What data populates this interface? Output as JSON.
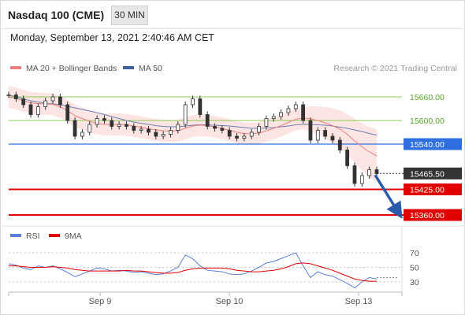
{
  "header": {
    "title": "Nasdaq 100 (CME)",
    "interval": "30 MIN",
    "timestamp": "Monday, September 13, 2021 2:40:46 AM CET"
  },
  "legend": {
    "items": [
      {
        "label": "MA 20 + Bollinger Bands",
        "color": "#f08080"
      },
      {
        "label": "MA 50",
        "color": "#3f5f9f"
      }
    ],
    "credit": "Research © 2021 Trading Central"
  },
  "levels": [
    {
      "label": "15660.00",
      "value": 15660,
      "color": "#8ccc55",
      "style": "thin"
    },
    {
      "label": "15600.00",
      "value": 15600,
      "color": "#8ccc55",
      "style": "thin"
    },
    {
      "label": "15540.00",
      "value": 15540,
      "color": "#2f6fe0",
      "style": "box"
    },
    {
      "label": "15465.50",
      "value": 15465.5,
      "color": "#333333",
      "style": "box"
    },
    {
      "label": "15425.00",
      "value": 15425,
      "color": "#e00000",
      "style": "box"
    },
    {
      "label": "15360.00",
      "value": 15360,
      "color": "#e00000",
      "style": "box"
    }
  ],
  "rsi": {
    "legend": [
      {
        "label": "RSI",
        "color": "#5b7fd6"
      },
      {
        "label": "9MA",
        "color": "#e00000"
      }
    ],
    "ticks": [
      "70",
      "50",
      "30"
    ]
  },
  "chart_data": {
    "type": "line",
    "title": "Nasdaq 100 (CME)",
    "x_tick_labels": [
      "Sep 9",
      "Sep 10",
      "Sep 13"
    ],
    "y_ticks": [
      15660,
      15600,
      15540,
      15465.5,
      15425,
      15360
    ],
    "series": [
      {
        "name": "price",
        "values": [
          15665,
          15655,
          15640,
          15615,
          15635,
          15650,
          15660,
          15640,
          15600,
          15560,
          15570,
          15590,
          15605,
          15600,
          15585,
          15590,
          15585,
          15575,
          15578,
          15570,
          15560,
          15565,
          15575,
          15590,
          15640,
          15655,
          15615,
          15585,
          15580,
          15575,
          15560,
          15555,
          15560,
          15570,
          15585,
          15605,
          15610,
          15620,
          15630,
          15640,
          15600,
          15550,
          15575,
          15560,
          15550,
          15525,
          15485,
          15440,
          15460,
          15475,
          15465
        ]
      },
      {
        "name": "MA 20",
        "values": [
          15660,
          15656,
          15650,
          15645,
          15643,
          15642,
          15641,
          15635,
          15625,
          15612,
          15605,
          15598,
          15592,
          15590,
          15590,
          15590,
          15589,
          15586,
          15583,
          15579,
          15576,
          15574,
          15573,
          15574,
          15580,
          15586,
          15588,
          15587,
          15584,
          15580,
          15575,
          15570,
          15567,
          15566,
          15568,
          15574,
          15580,
          15587,
          15595,
          15603,
          15606,
          15604,
          15600,
          15594,
          15587,
          15578,
          15565,
          15548,
          15533,
          15520,
          15510
        ]
      },
      {
        "name": "MA 50",
        "values": [
          15665,
          15660,
          15655,
          15650,
          15647,
          15644,
          15642,
          15640,
          15636,
          15632,
          15628,
          15624,
          15620,
          15615,
          15610,
          15605,
          15600,
          15596,
          15593,
          15590,
          15587,
          15585,
          15584,
          15584,
          15586,
          15588,
          15589,
          15589,
          15588,
          15587,
          15586,
          15584,
          15582,
          15580,
          15580,
          15581,
          15582,
          15584,
          15586,
          15589,
          15590,
          15590,
          15589,
          15588,
          15586,
          15583,
          15580,
          15576,
          15572,
          15567,
          15563
        ]
      },
      {
        "name": "RSI",
        "values": [
          55,
          53,
          49,
          47,
          52,
          50,
          52,
          48,
          43,
          37,
          41,
          45,
          49,
          48,
          45,
          46,
          45,
          43,
          44,
          42,
          40,
          41,
          45,
          50,
          67,
          62,
          52,
          46,
          45,
          44,
          41,
          40,
          41,
          45,
          50,
          56,
          58,
          62,
          66,
          70,
          52,
          36,
          44,
          40,
          38,
          33,
          28,
          22,
          30,
          36,
          34
        ]
      },
      {
        "name": "9MA",
        "values": [
          52,
          52,
          51,
          50,
          50,
          50,
          51,
          50,
          49,
          47,
          46,
          45,
          45,
          45,
          45,
          45,
          46,
          45,
          45,
          44,
          43,
          42,
          42,
          43,
          46,
          48,
          49,
          49,
          49,
          49,
          48,
          46,
          45,
          44,
          44,
          45,
          46,
          48,
          51,
          55,
          56,
          55,
          52,
          49,
          46,
          42,
          38,
          34,
          32,
          31,
          31
        ]
      }
    ],
    "rsi_levels": [
      70,
      50,
      30
    ],
    "bollinger_band_width": 28,
    "forecast": {
      "from": 15465.5,
      "to": 15360,
      "direction": "down"
    }
  }
}
